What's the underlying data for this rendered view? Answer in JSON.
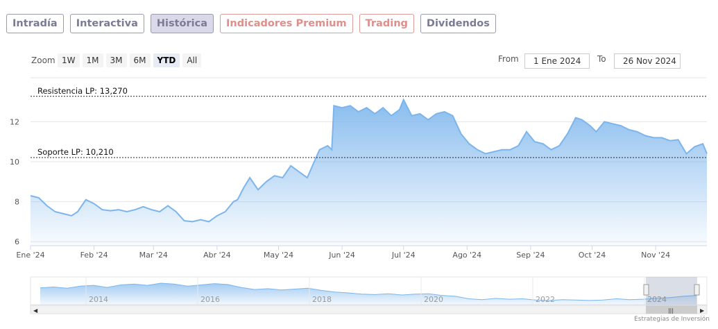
{
  "tabs": [
    {
      "label": "Intradía",
      "active": false,
      "premium": false
    },
    {
      "label": "Interactiva",
      "active": false,
      "premium": false
    },
    {
      "label": "Histórica",
      "active": true,
      "premium": false
    },
    {
      "label": "Indicadores Premium",
      "active": false,
      "premium": true
    },
    {
      "label": "Trading",
      "active": false,
      "premium": true
    },
    {
      "label": "Dividendos",
      "active": false,
      "premium": false
    }
  ],
  "zoom": {
    "label": "Zoom",
    "buttons": [
      "1W",
      "1M",
      "3M",
      "6M",
      "YTD",
      "All"
    ],
    "selected": "YTD"
  },
  "range": {
    "from_label": "From",
    "from_value": "1 Ene 2024",
    "to_label": "To",
    "to_value": "26 Nov 2024"
  },
  "credit": "Estrategias de Inversión",
  "colors": {
    "line": "#7cb5ec",
    "resistance": "#222222",
    "support": "#222222",
    "premium": "#de8f8b"
  },
  "chart_data": {
    "type": "area",
    "title": "",
    "xlabel": "",
    "ylabel": "",
    "ylim": [
      5.8,
      14.2
    ],
    "y_ticks": [
      6,
      8,
      10,
      12
    ],
    "x_ticks": [
      {
        "date": "2024-01-01",
        "label": "Ene '24"
      },
      {
        "date": "2024-02-01",
        "label": "Feb '24"
      },
      {
        "date": "2024-03-01",
        "label": "Mar '24"
      },
      {
        "date": "2024-04-01",
        "label": "Abr '24"
      },
      {
        "date": "2024-05-01",
        "label": "May '24"
      },
      {
        "date": "2024-06-01",
        "label": "Jun '24"
      },
      {
        "date": "2024-07-01",
        "label": "Jul '24"
      },
      {
        "date": "2024-08-01",
        "label": "Ago '24"
      },
      {
        "date": "2024-09-01",
        "label": "Sep '24"
      },
      {
        "date": "2024-10-01",
        "label": "Oct '24"
      },
      {
        "date": "2024-11-01",
        "label": "Nov '24"
      }
    ],
    "x_range": [
      "2024-01-01",
      "2024-11-26"
    ],
    "annotations": [
      {
        "label": "Resistencia LP: 13,270",
        "y": 13.27,
        "kind": "resistance"
      },
      {
        "label": "Soporte LP: 10,210",
        "y": 10.21,
        "kind": "support"
      }
    ],
    "series": [
      {
        "x": [
          "2024-01-01",
          "2024-01-05",
          "2024-01-09",
          "2024-01-13",
          "2024-01-17",
          "2024-01-21",
          "2024-01-24",
          "2024-01-28",
          "2024-02-01",
          "2024-02-05",
          "2024-02-09",
          "2024-02-13",
          "2024-02-17",
          "2024-02-21",
          "2024-02-25",
          "2024-02-29",
          "2024-03-04",
          "2024-03-08",
          "2024-03-12",
          "2024-03-16",
          "2024-03-20",
          "2024-03-24",
          "2024-03-28",
          "2024-04-01",
          "2024-04-05",
          "2024-04-09",
          "2024-04-11",
          "2024-04-14",
          "2024-04-17",
          "2024-04-21",
          "2024-04-25",
          "2024-04-29",
          "2024-05-03",
          "2024-05-07",
          "2024-05-11",
          "2024-05-15",
          "2024-05-18",
          "2024-05-21",
          "2024-05-25",
          "2024-05-27",
          "2024-05-28",
          "2024-06-01",
          "2024-06-05",
          "2024-06-09",
          "2024-06-13",
          "2024-06-17",
          "2024-06-21",
          "2024-06-25",
          "2024-06-29",
          "2024-07-01",
          "2024-07-05",
          "2024-07-09",
          "2024-07-13",
          "2024-07-17",
          "2024-07-21",
          "2024-07-25",
          "2024-07-29",
          "2024-08-02",
          "2024-08-06",
          "2024-08-10",
          "2024-08-14",
          "2024-08-18",
          "2024-08-22",
          "2024-08-26",
          "2024-08-30",
          "2024-09-03",
          "2024-09-07",
          "2024-09-11",
          "2024-09-15",
          "2024-09-19",
          "2024-09-23",
          "2024-09-26",
          "2024-09-30",
          "2024-10-03",
          "2024-10-07",
          "2024-10-11",
          "2024-10-15",
          "2024-10-19",
          "2024-10-23",
          "2024-10-27",
          "2024-10-31",
          "2024-11-04",
          "2024-11-08",
          "2024-11-12",
          "2024-11-16",
          "2024-11-20",
          "2024-11-24",
          "2024-11-26"
        ],
        "values": [
          8.3,
          8.2,
          7.8,
          7.5,
          7.4,
          7.3,
          7.5,
          8.1,
          7.9,
          7.6,
          7.55,
          7.6,
          7.5,
          7.6,
          7.75,
          7.6,
          7.5,
          7.8,
          7.5,
          7.05,
          7.0,
          7.1,
          7.0,
          7.3,
          7.5,
          8.0,
          8.1,
          8.7,
          9.2,
          8.6,
          9.0,
          9.3,
          9.2,
          9.8,
          9.5,
          9.2,
          9.9,
          10.6,
          10.8,
          10.6,
          12.8,
          12.7,
          12.8,
          12.5,
          12.7,
          12.4,
          12.7,
          12.3,
          12.6,
          13.1,
          12.3,
          12.4,
          12.1,
          12.4,
          12.5,
          12.3,
          11.4,
          10.9,
          10.6,
          10.4,
          10.5,
          10.6,
          10.6,
          10.8,
          11.5,
          11.0,
          10.9,
          10.6,
          10.8,
          11.4,
          12.2,
          12.1,
          11.8,
          11.5,
          12.0,
          11.9,
          11.8,
          11.6,
          11.5,
          11.3,
          11.2,
          11.2,
          11.05,
          11.1,
          10.4,
          10.75,
          10.9,
          10.4
        ]
      }
    ]
  },
  "navigator": {
    "year_labels": [
      "2014",
      "2016",
      "2018",
      "2020",
      "2022",
      "2024"
    ],
    "values": [
      11.2,
      11.4,
      11.1,
      11.6,
      11.8,
      11.3,
      11.9,
      12.1,
      11.8,
      12.3,
      12.1,
      11.6,
      11.9,
      12.2,
      12.0,
      11.3,
      10.8,
      11.0,
      10.7,
      10.9,
      11.1,
      10.6,
      10.2,
      10.0,
      9.7,
      9.6,
      9.8,
      9.5,
      9.7,
      9.8,
      9.4,
      9.2,
      8.6,
      8.4,
      8.7,
      8.5,
      8.6,
      8.3,
      8.2,
      8.4,
      8.3,
      8.2,
      8.3,
      8.6,
      8.4,
      8.5,
      8.7,
      8.9,
      9.2,
      9.4
    ]
  }
}
